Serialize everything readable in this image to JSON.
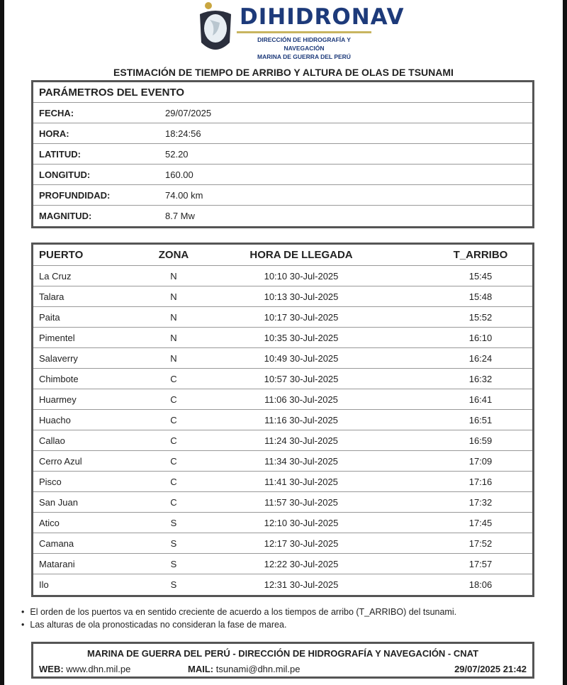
{
  "header": {
    "brand": "DIHIDRONAV",
    "line1": "DIRECCIÓN DE HIDROGRAFÍA Y NAVEGACIÓN",
    "line2": "MARINA DE GUERRA DEL PERÚ"
  },
  "title": "ESTIMACIÓN DE TIEMPO DE ARRIBO Y ALTURA DE OLAS DE TSUNAMI",
  "params": {
    "heading": "PARÁMETROS DEL EVENTO",
    "rows": [
      {
        "label": "FECHA:",
        "value": "29/07/2025"
      },
      {
        "label": "HORA:",
        "value": "18:24:56"
      },
      {
        "label": "LATITUD:",
        "value": "52.20"
      },
      {
        "label": "LONGITUD:",
        "value": "160.00"
      },
      {
        "label": "PROFUNDIDAD:",
        "value": "74.00 km"
      },
      {
        "label": "MAGNITUD:",
        "value": "8.7 Mw"
      }
    ]
  },
  "ports": {
    "columns": [
      "PUERTO",
      "ZONA",
      "HORA DE LLEGADA",
      "T_ARRIBO"
    ],
    "rows": [
      [
        "La Cruz",
        "N",
        "10:10 30-Jul-2025",
        "15:45"
      ],
      [
        "Talara",
        "N",
        "10:13 30-Jul-2025",
        "15:48"
      ],
      [
        "Paita",
        "N",
        "10:17 30-Jul-2025",
        "15:52"
      ],
      [
        "Pimentel",
        "N",
        "10:35 30-Jul-2025",
        "16:10"
      ],
      [
        "Salaverry",
        "N",
        "10:49 30-Jul-2025",
        "16:24"
      ],
      [
        "Chimbote",
        "C",
        "10:57 30-Jul-2025",
        "16:32"
      ],
      [
        "Huarmey",
        "C",
        "11:06 30-Jul-2025",
        "16:41"
      ],
      [
        "Huacho",
        "C",
        "11:16 30-Jul-2025",
        "16:51"
      ],
      [
        "Callao",
        "C",
        "11:24 30-Jul-2025",
        "16:59"
      ],
      [
        "Cerro Azul",
        "C",
        "11:34 30-Jul-2025",
        "17:09"
      ],
      [
        "Pisco",
        "C",
        "11:41 30-Jul-2025",
        "17:16"
      ],
      [
        "San Juan",
        "C",
        "11:57 30-Jul-2025",
        "17:32"
      ],
      [
        "Atico",
        "S",
        "12:10 30-Jul-2025",
        "17:45"
      ],
      [
        "Camana",
        "S",
        "12:17 30-Jul-2025",
        "17:52"
      ],
      [
        "Matarani",
        "S",
        "12:22 30-Jul-2025",
        "17:57"
      ],
      [
        "Ilo",
        "S",
        "12:31 30-Jul-2025",
        "18:06"
      ]
    ]
  },
  "notes": [
    "El orden de los puertos va en sentido creciente de acuerdo a los tiempos de arribo (T_ARRIBO) del tsunami.",
    "Las alturas de ola pronosticadas no consideran la fase de marea."
  ],
  "footer": {
    "title": "MARINA DE GUERRA DEL PERÚ - DIRECCIÓN DE HIDROGRAFÍA Y NAVEGACIÓN - CNAT",
    "web_label": "WEB:",
    "web": "www.dhn.mil.pe",
    "mail_label": "MAIL:",
    "mail": "tsunami@dhn.mil.pe",
    "datetime": "29/07/2025 21:42"
  }
}
